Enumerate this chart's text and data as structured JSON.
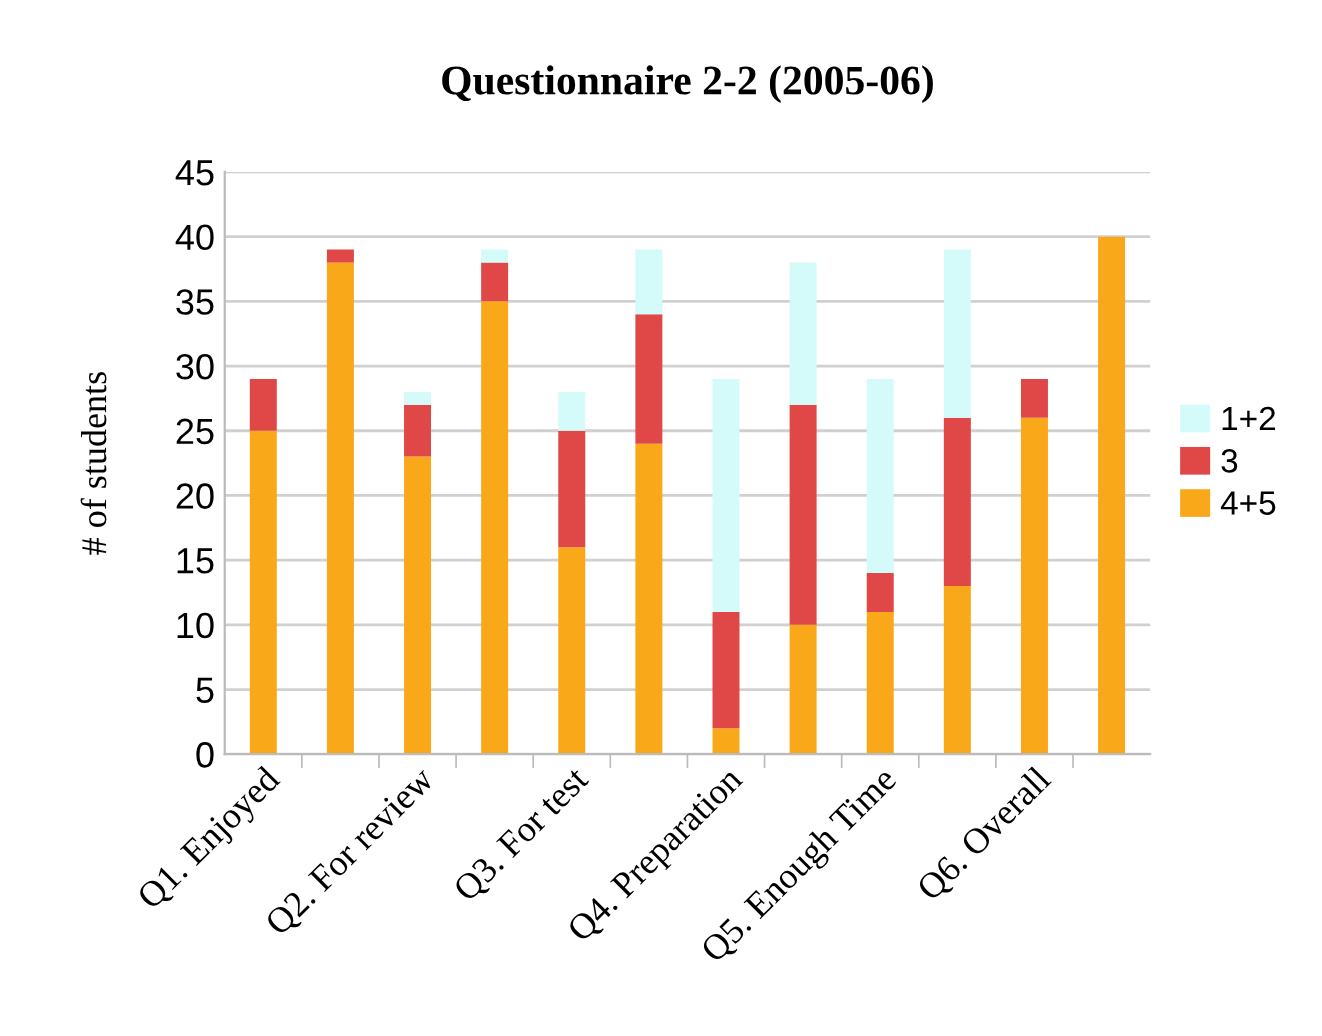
{
  "chart_data": {
    "type": "bar",
    "title": "Questionnaire 2-2 (2005-06)",
    "ylabel": "# of students",
    "categories": [
      "Q1. Enjoyed",
      null,
      "Q2. For review",
      null,
      "Q3. For test",
      null,
      "Q4. Preparation",
      null,
      "Q5. Enough Time",
      null,
      "Q6. Overall",
      null
    ],
    "stacked": true,
    "series": [
      {
        "name": "4+5",
        "color": "#f9a81a",
        "values": [
          25,
          38,
          23,
          35,
          16,
          24,
          2,
          10,
          11,
          13,
          26,
          40
        ]
      },
      {
        "name": "3",
        "color": "#e04848",
        "values": [
          4,
          1,
          4,
          3,
          9,
          10,
          9,
          17,
          3,
          13,
          3,
          0
        ]
      },
      {
        "name": "1+2",
        "color": "#d4fbf9",
        "values": [
          0,
          0,
          1,
          1,
          3,
          5,
          18,
          11,
          15,
          13,
          0,
          0
        ]
      }
    ],
    "ylim": [
      0,
      45
    ],
    "yticks": [
      0,
      5,
      10,
      15,
      20,
      25,
      30,
      35,
      40,
      45
    ],
    "grid": "y",
    "legend": "right"
  }
}
